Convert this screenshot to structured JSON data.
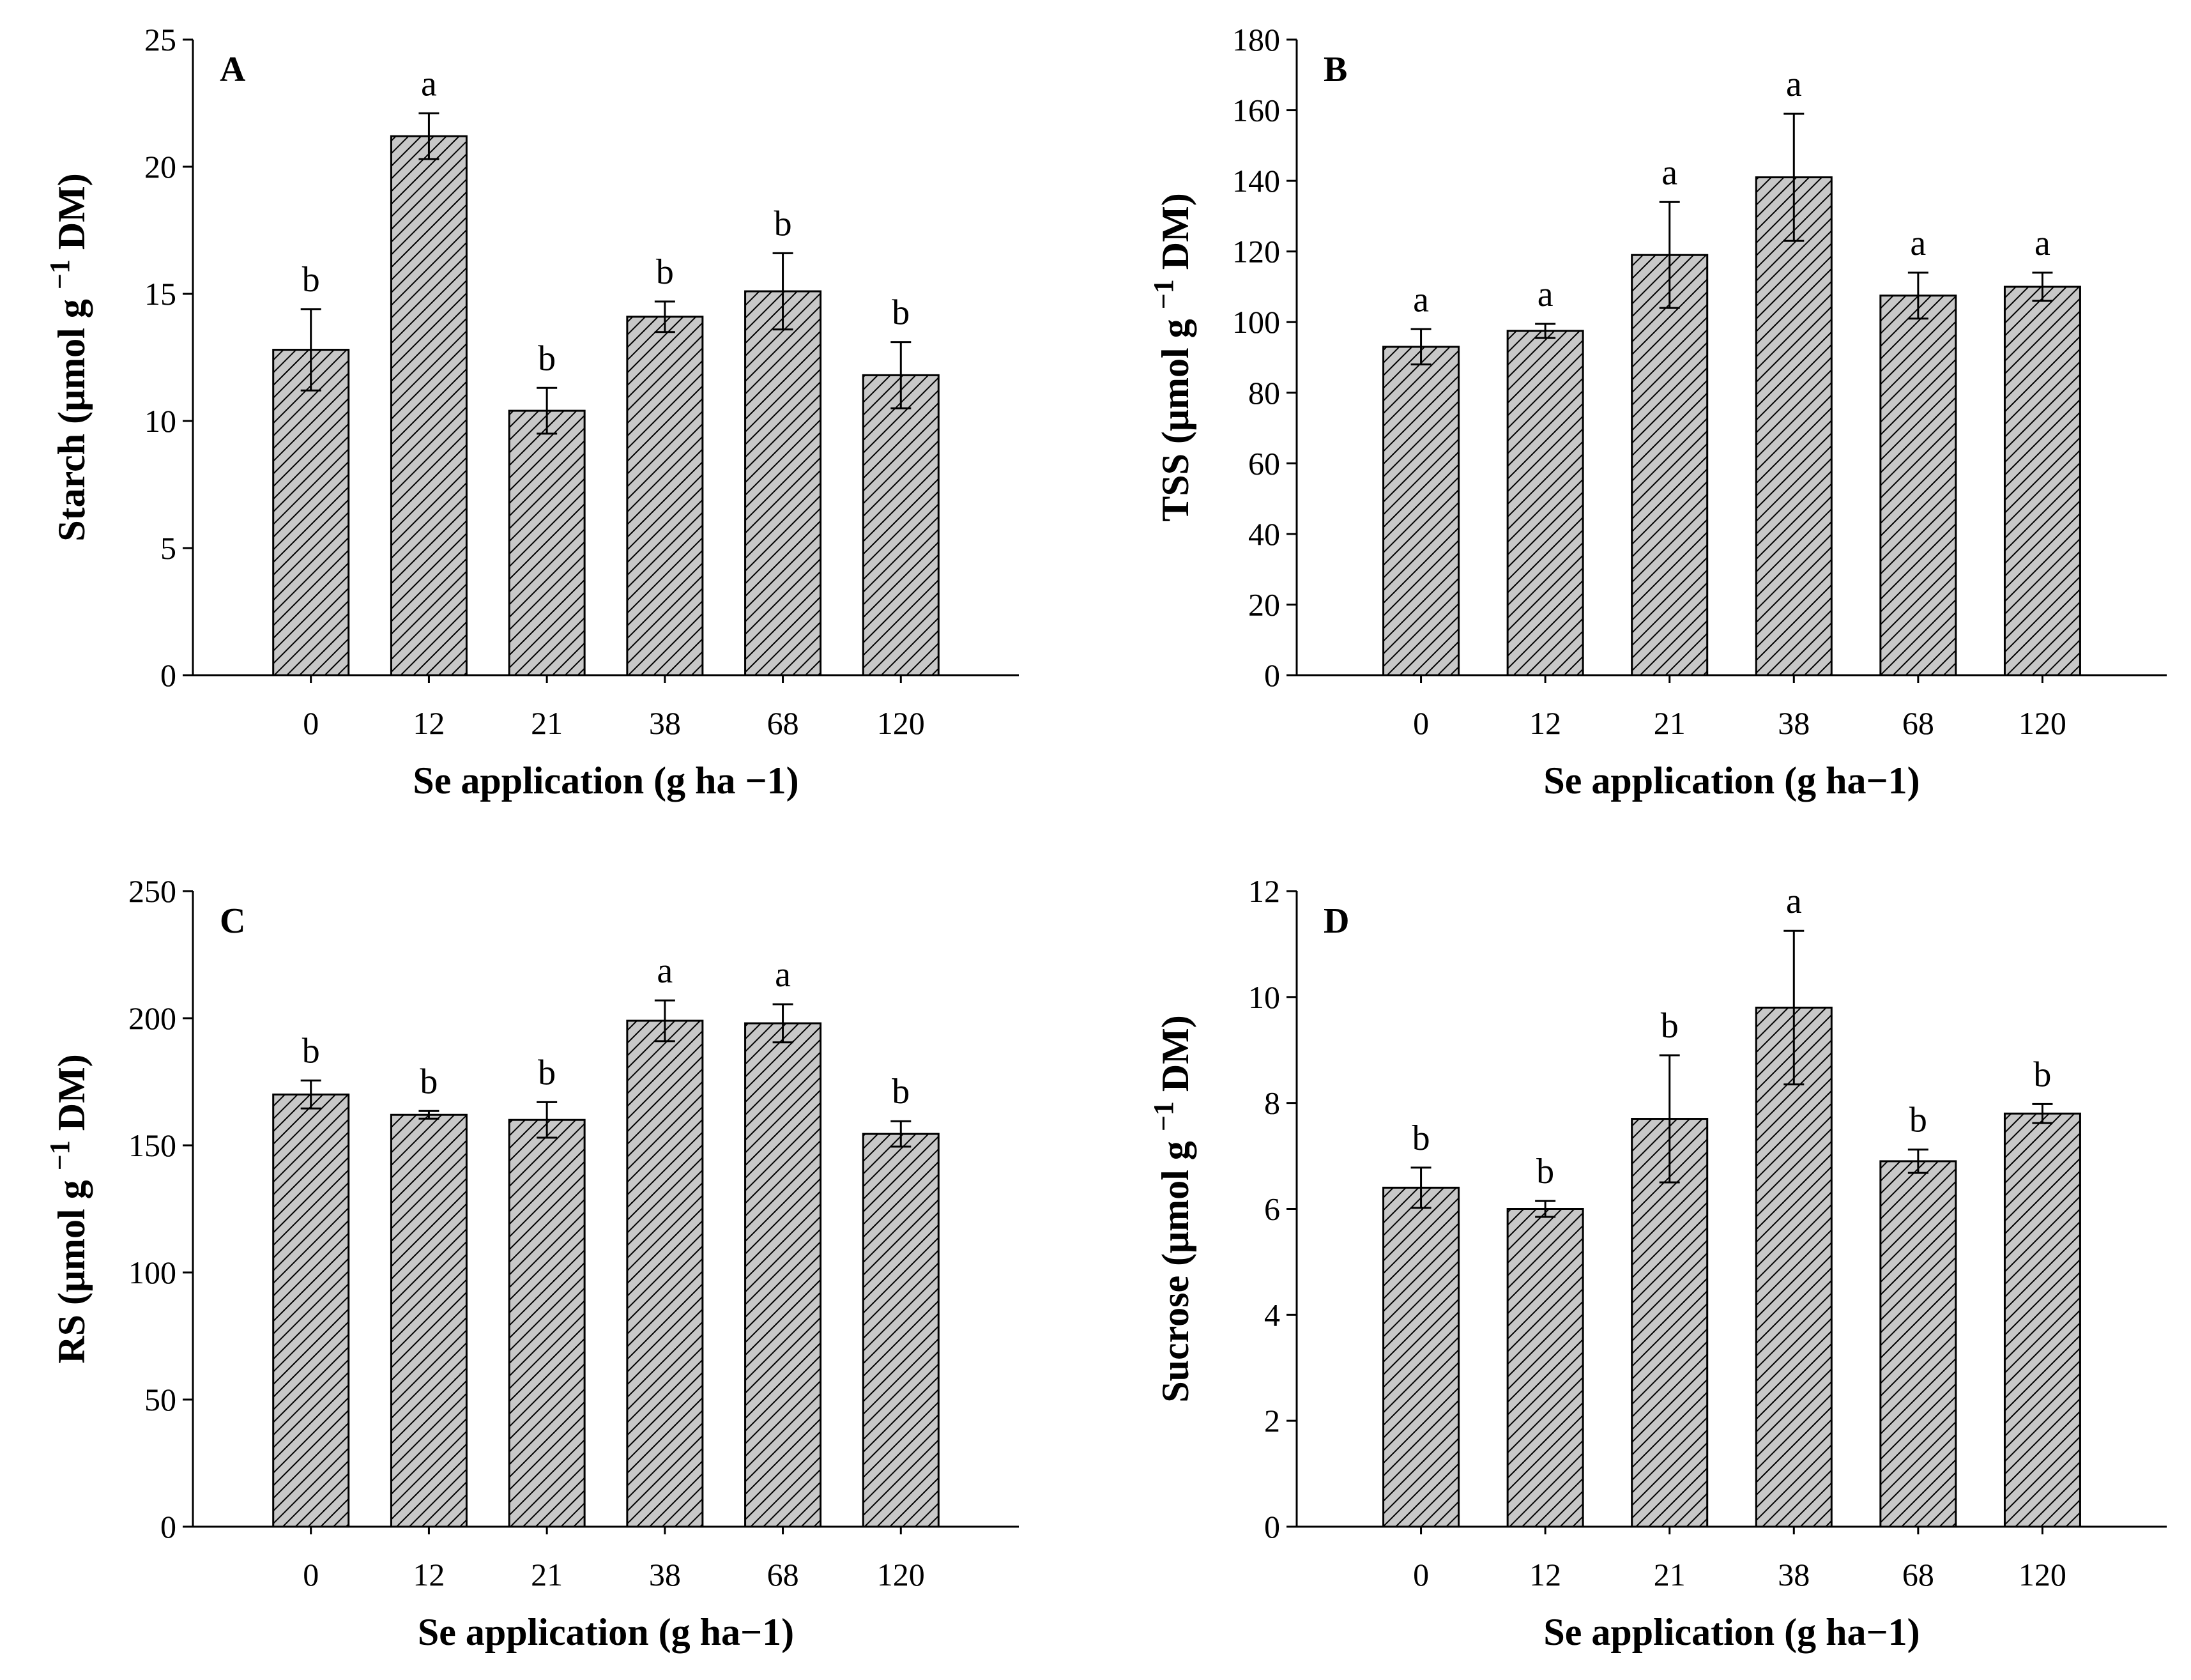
{
  "chart_data": [
    {
      "panel": "A",
      "type": "bar",
      "categories": [
        "0",
        "12",
        "21",
        "38",
        "68",
        "120"
      ],
      "values": [
        12.8,
        21.2,
        10.4,
        14.1,
        15.1,
        11.8
      ],
      "errors": [
        1.6,
        0.9,
        0.9,
        0.6,
        1.5,
        1.3
      ],
      "significance": [
        "b",
        "a",
        "b",
        "b",
        "b",
        "b"
      ],
      "ylim": [
        0,
        25
      ],
      "yticks": [
        0,
        5,
        10,
        15,
        20,
        25
      ],
      "xlabel": "Se application (g ha −1)",
      "ylabel": "Starch (μmol g −1 DM)",
      "ylabel_main": "Starch (μmol g ",
      "ylabel_sup": "−1",
      "ylabel_end": " DM)"
    },
    {
      "panel": "B",
      "type": "bar",
      "categories": [
        "0",
        "12",
        "21",
        "38",
        "68",
        "120"
      ],
      "values": [
        93,
        97.5,
        119,
        141,
        107.5,
        110
      ],
      "errors": [
        5,
        2,
        15,
        18,
        6.5,
        4
      ],
      "significance": [
        "a",
        "a",
        "a",
        "a",
        "a",
        "a"
      ],
      "ylim": [
        0,
        180
      ],
      "yticks": [
        0,
        20,
        40,
        60,
        80,
        100,
        120,
        140,
        160,
        180
      ],
      "xlabel": "Se application (g ha−1)",
      "ylabel": "TSS (μmol g −1 DM)",
      "ylabel_main": "TSS (μmol g ",
      "ylabel_sup": "−1",
      "ylabel_end": " DM)"
    },
    {
      "panel": "C",
      "type": "bar",
      "categories": [
        "0",
        "12",
        "21",
        "38",
        "68",
        "120"
      ],
      "values": [
        170,
        162,
        160,
        199,
        198,
        154.5
      ],
      "errors": [
        5.5,
        1.5,
        7,
        8,
        7.5,
        5
      ],
      "significance": [
        "b",
        "b",
        "b",
        "a",
        "a",
        "b"
      ],
      "ylim": [
        0,
        250
      ],
      "yticks": [
        0,
        50,
        100,
        150,
        200,
        250
      ],
      "xlabel": "Se application (g ha−1)",
      "ylabel": "RS (μmol g −1 DM)",
      "ylabel_main": "RS (μmol g ",
      "ylabel_sup": "−1",
      "ylabel_end": " DM)"
    },
    {
      "panel": "D",
      "type": "bar",
      "categories": [
        "0",
        "12",
        "21",
        "38",
        "68",
        "120"
      ],
      "values": [
        6.4,
        6.0,
        7.7,
        9.8,
        6.9,
        7.8
      ],
      "errors": [
        0.38,
        0.15,
        1.2,
        1.45,
        0.22,
        0.18
      ],
      "significance": [
        "b",
        "b",
        "b",
        "a",
        "b",
        "b"
      ],
      "ylim": [
        0,
        12
      ],
      "yticks": [
        0,
        2,
        4,
        6,
        8,
        10,
        12
      ],
      "xlabel": "Se application (g ha−1)",
      "ylabel": "Sucrose (μmol g −1 DM)",
      "ylabel_main": "Sucrose (μmol g ",
      "ylabel_sup": "−1",
      "ylabel_end": " DM)"
    }
  ],
  "colors": {
    "bar_fill": "#c8c8c8",
    "hatch": "#000000",
    "axis": "#000000"
  }
}
